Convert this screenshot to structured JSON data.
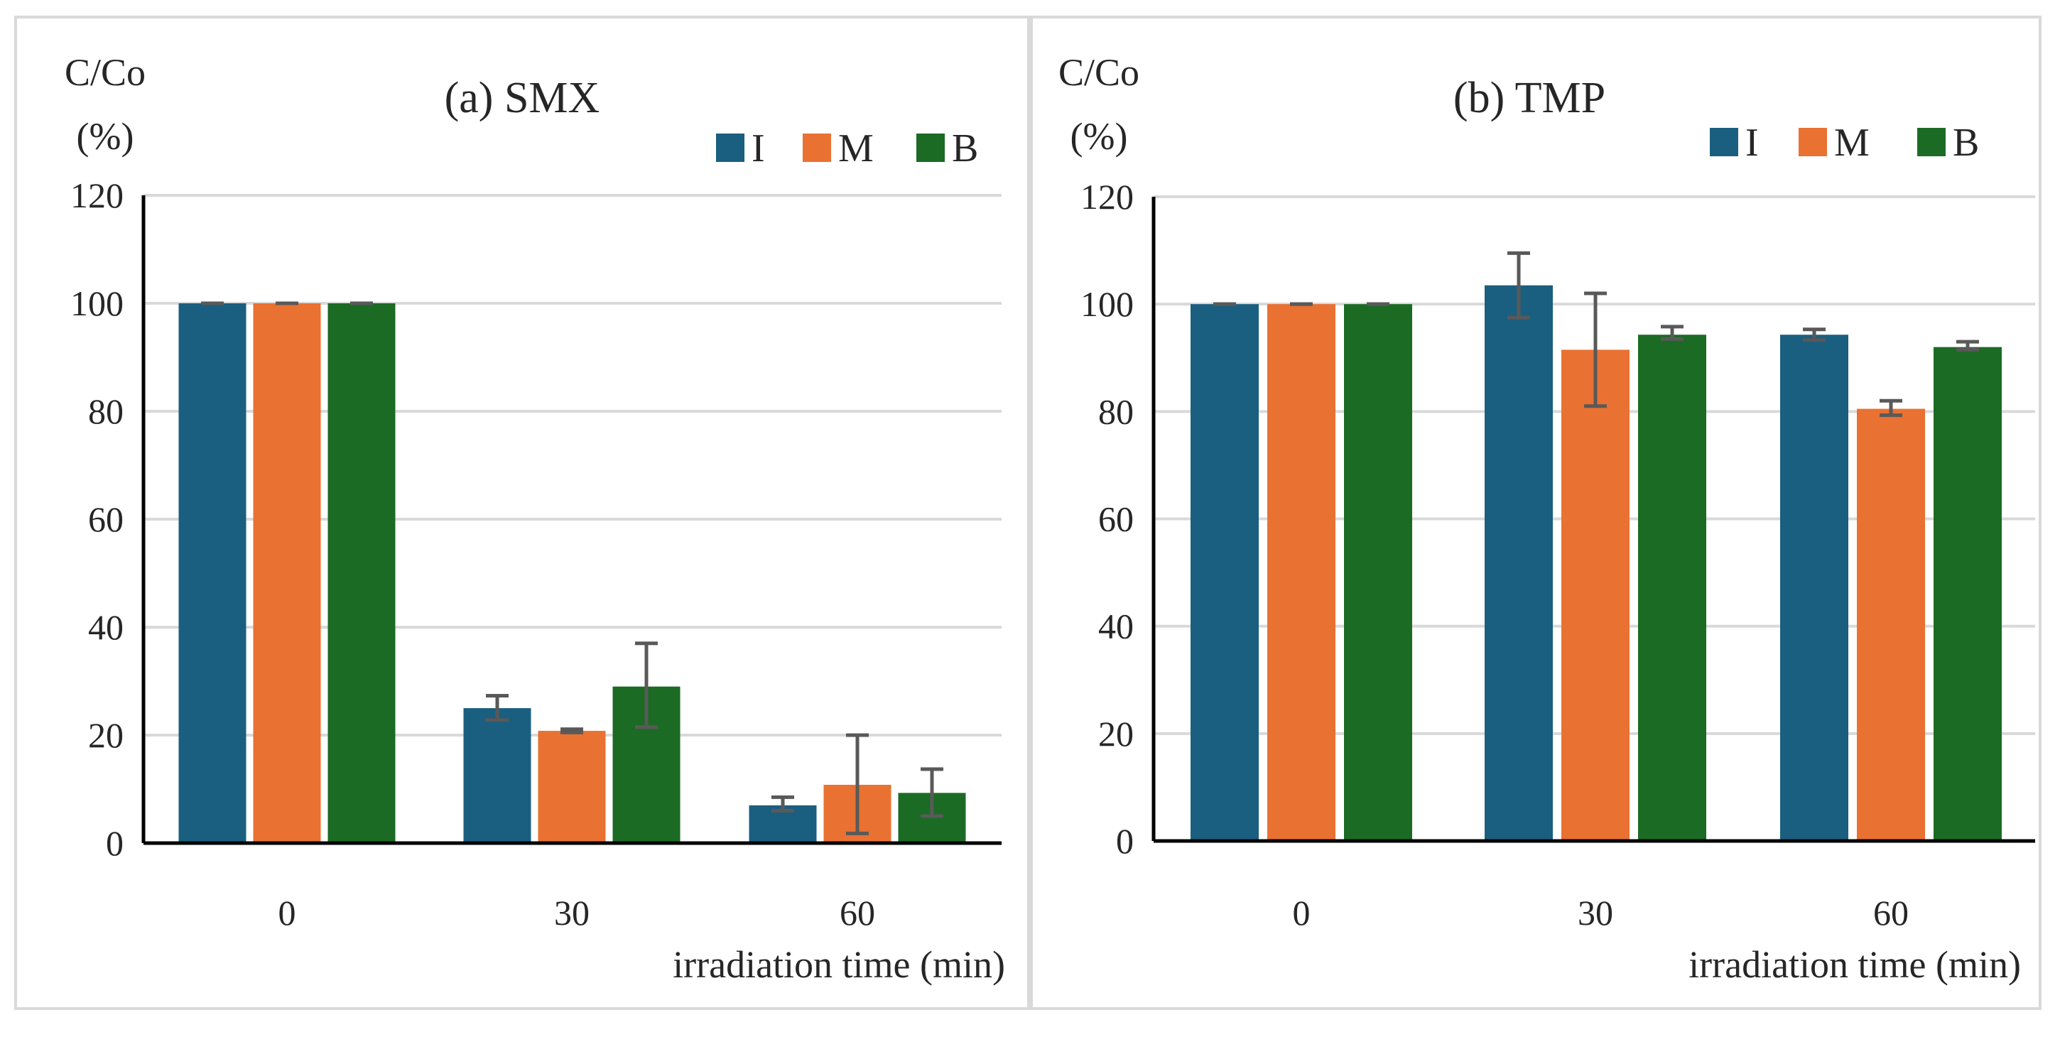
{
  "colors": {
    "I": "#1a5f80",
    "M": "#e97132",
    "B": "#1b6b24",
    "error": "#595959",
    "grid": "#d9d9d9",
    "axis": "#000000"
  },
  "chart_data": [
    {
      "type": "bar",
      "title": "(a) SMX",
      "ylabel_line1": "C/Co",
      "ylabel_line2": "(%)",
      "xlabel": "irradiation  time (min)",
      "categories": [
        "0",
        "30",
        "60"
      ],
      "ylim": [
        0,
        120
      ],
      "yticks": [
        "0",
        "20",
        "40",
        "60",
        "80",
        "100",
        "120"
      ],
      "grid": true,
      "legend_position": "top-right",
      "series": [
        {
          "name": "I",
          "values": [
            100,
            25,
            7
          ],
          "err_low": [
            100,
            22.8,
            6
          ],
          "err_high": [
            100,
            27.3,
            8.5
          ]
        },
        {
          "name": "M",
          "values": [
            100,
            20.8,
            10.8
          ],
          "err_low": [
            100,
            20.5,
            1.8
          ],
          "err_high": [
            100,
            21.1,
            20
          ]
        },
        {
          "name": "B",
          "values": [
            100,
            29,
            9.3
          ],
          "err_low": [
            100,
            21.5,
            5
          ],
          "err_high": [
            100,
            37,
            13.7
          ]
        }
      ]
    },
    {
      "type": "bar",
      "title": "(b) TMP",
      "ylabel_line1": "C/Co",
      "ylabel_line2": "(%)",
      "xlabel": "irradiation  time (min)",
      "categories": [
        "0",
        "30",
        "60"
      ],
      "ylim": [
        0,
        120
      ],
      "yticks": [
        "0",
        "20",
        "40",
        "60",
        "80",
        "100",
        "120"
      ],
      "grid": true,
      "legend_position": "top-right",
      "series": [
        {
          "name": "I",
          "values": [
            100,
            103.5,
            94.3
          ],
          "err_low": [
            100,
            97.5,
            93.3
          ],
          "err_high": [
            100,
            109.5,
            95.3
          ]
        },
        {
          "name": "M",
          "values": [
            100,
            91.5,
            80.5
          ],
          "err_low": [
            100,
            81,
            79.3
          ],
          "err_high": [
            100,
            102,
            82
          ]
        },
        {
          "name": "B",
          "values": [
            100,
            94.3,
            92
          ],
          "err_low": [
            100,
            93.5,
            91.5
          ],
          "err_high": [
            100,
            95.8,
            93
          ]
        }
      ]
    }
  ]
}
